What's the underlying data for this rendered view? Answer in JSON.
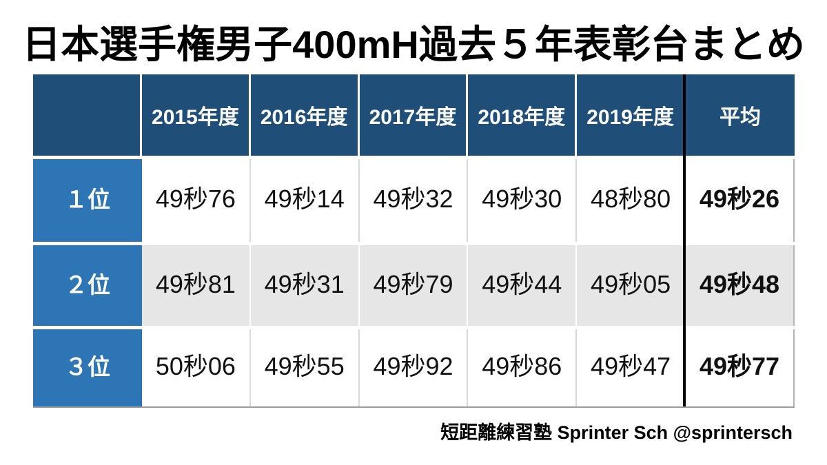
{
  "title": "日本選手権男子400mH過去５年表彰台まとめ",
  "table": {
    "column_headers": [
      "2015年度",
      "2016年度",
      "2017年度",
      "2018年度",
      "2019年度",
      "平均"
    ],
    "rows": [
      {
        "label": "１位",
        "values": [
          "49秒76",
          "49秒14",
          "49秒32",
          "49秒30",
          "48秒80"
        ],
        "average": "49秒26"
      },
      {
        "label": "２位",
        "values": [
          "49秒81",
          "49秒31",
          "49秒79",
          "49秒44",
          "49秒05"
        ],
        "average": "49秒48"
      },
      {
        "label": "３位",
        "values": [
          "50秒06",
          "49秒55",
          "49秒92",
          "49秒86",
          "49秒47"
        ],
        "average": "49秒77"
      }
    ]
  },
  "footer": {
    "credit": "短距離練習塾 Sprinter Sch @sprintersch"
  },
  "colors": {
    "header-blue": "#1f4e79",
    "label-blue": "#2e75b6",
    "stripe-gray": "#e7e6e6",
    "divider-black": "#000000",
    "grid-line": "#d9d9d9"
  },
  "chart_data": {
    "type": "table",
    "title": "日本選手権男子400mH過去５年表彰台まとめ",
    "columns": [
      "",
      "2015年度",
      "2016年度",
      "2017年度",
      "2018年度",
      "2019年度",
      "平均"
    ],
    "rows": [
      [
        "１位",
        "49秒76",
        "49秒14",
        "49秒32",
        "49秒30",
        "48秒80",
        "49秒26"
      ],
      [
        "２位",
        "49秒81",
        "49秒31",
        "49秒79",
        "49秒44",
        "49秒05",
        "49秒48"
      ],
      [
        "３位",
        "50秒06",
        "49秒55",
        "49秒92",
        "49秒86",
        "49秒47",
        "49秒77"
      ]
    ],
    "numeric_seconds": {
      "rank1": [
        49.76,
        49.14,
        49.32,
        49.3,
        48.8
      ],
      "rank2": [
        49.81,
        49.31,
        49.79,
        49.44,
        49.05
      ],
      "rank3": [
        50.06,
        49.55,
        49.92,
        49.86,
        49.47
      ],
      "averages": {
        "rank1": 49.26,
        "rank2": 49.48,
        "rank3": 49.77
      }
    }
  }
}
